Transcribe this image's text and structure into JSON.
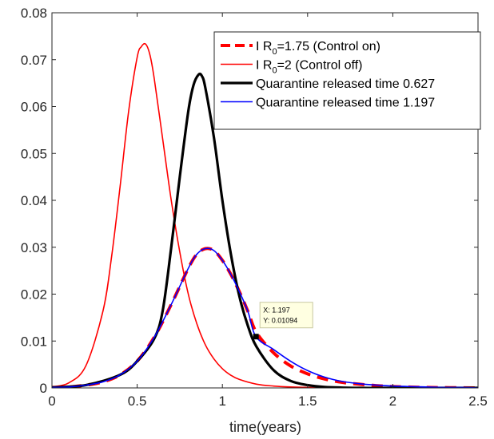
{
  "chart_data": {
    "type": "line",
    "title": "",
    "xlabel": "time(years)",
    "ylabel": "",
    "xlim": [
      0,
      2.5
    ],
    "ylim": [
      0,
      0.08
    ],
    "x_ticks": [
      "0",
      "0.5",
      "1",
      "1.5",
      "2",
      "2.5"
    ],
    "y_ticks": [
      "0",
      "0.01",
      "0.02",
      "0.03",
      "0.04",
      "0.05",
      "0.06",
      "0.07",
      "0.08"
    ],
    "grid": false,
    "legend_position": "top-right",
    "series": [
      {
        "name": "I R0=1.75 (Control on)",
        "legend_main": "I R",
        "legend_sub": "0",
        "legend_rest": "=1.75 (Control on)",
        "color": "#ff0000",
        "style": "dashed-thick",
        "x": [
          0,
          0.1,
          0.2,
          0.3,
          0.4,
          0.5,
          0.6,
          0.7,
          0.8,
          0.85,
          0.9,
          0.95,
          1.0,
          1.05,
          1.1,
          1.15,
          1.2,
          1.3,
          1.4,
          1.5,
          1.6,
          1.7,
          1.8,
          1.9,
          2.0,
          2.2,
          2.5
        ],
        "y": [
          0.0001,
          0.0002,
          0.0006,
          0.0013,
          0.0028,
          0.0057,
          0.0108,
          0.0178,
          0.0255,
          0.0285,
          0.0297,
          0.0293,
          0.0272,
          0.0242,
          0.0205,
          0.0163,
          0.0118,
          0.0075,
          0.0047,
          0.003,
          0.0019,
          0.0012,
          0.0008,
          0.0005,
          0.0003,
          0.0001,
          0.0
        ]
      },
      {
        "name": "I R0=2 (Control off)",
        "legend_main": "I R",
        "legend_sub": "0",
        "legend_rest": "=2 (Control off)",
        "color": "#ff0000",
        "style": "solid-thin",
        "x": [
          0,
          0.1,
          0.2,
          0.3,
          0.35,
          0.4,
          0.45,
          0.5,
          0.525,
          0.55,
          0.575,
          0.6,
          0.65,
          0.7,
          0.75,
          0.8,
          0.85,
          0.9,
          0.95,
          1.0,
          1.05,
          1.1,
          1.2,
          1.3,
          1.4,
          1.5,
          1.7,
          2.0,
          2.5
        ],
        "y": [
          0.0002,
          0.0011,
          0.0048,
          0.0165,
          0.028,
          0.043,
          0.059,
          0.0705,
          0.0728,
          0.0733,
          0.071,
          0.066,
          0.053,
          0.04,
          0.029,
          0.02,
          0.0137,
          0.0092,
          0.0062,
          0.0041,
          0.0027,
          0.0018,
          0.0008,
          0.0004,
          0.0002,
          0.0001,
          0.0,
          0.0,
          0.0
        ]
      },
      {
        "name": "Quarantine released  time 0.627",
        "legend_main": "Quarantine released  time 0.627",
        "legend_sub": "",
        "legend_rest": "",
        "color": "#000000",
        "style": "solid-thick",
        "x": [
          0,
          0.2,
          0.4,
          0.5,
          0.6,
          0.65,
          0.7,
          0.75,
          0.8,
          0.83,
          0.86,
          0.88,
          0.9,
          0.95,
          1.0,
          1.05,
          1.1,
          1.15,
          1.2,
          1.3,
          1.4,
          1.5,
          1.6,
          1.8,
          2.0,
          2.5
        ],
        "y": [
          0.0001,
          0.0006,
          0.0028,
          0.0057,
          0.0105,
          0.0165,
          0.03,
          0.045,
          0.059,
          0.0645,
          0.0668,
          0.0665,
          0.064,
          0.0535,
          0.04,
          0.0285,
          0.0195,
          0.0132,
          0.0088,
          0.0038,
          0.0015,
          0.0006,
          0.0002,
          0.0,
          0.0,
          0.0
        ]
      },
      {
        "name": "Quarantine released time 1.197",
        "legend_main": "Quarantine released time 1.197",
        "legend_sub": "",
        "legend_rest": "",
        "color": "#0000ff",
        "style": "solid-thin",
        "x": [
          0,
          0.1,
          0.2,
          0.3,
          0.4,
          0.5,
          0.6,
          0.7,
          0.8,
          0.85,
          0.9,
          0.95,
          1.0,
          1.05,
          1.1,
          1.15,
          1.197,
          1.3,
          1.4,
          1.5,
          1.6,
          1.7,
          1.8,
          1.9,
          2.0,
          2.1,
          2.2,
          2.3,
          2.4,
          2.5
        ],
        "y": [
          0.0001,
          0.0002,
          0.0006,
          0.0013,
          0.0028,
          0.0057,
          0.0108,
          0.0178,
          0.0255,
          0.0285,
          0.0297,
          0.0293,
          0.0272,
          0.0242,
          0.0205,
          0.0163,
          0.01094,
          0.0082,
          0.0057,
          0.0037,
          0.0023,
          0.0014,
          0.0009,
          0.0006,
          0.0004,
          0.0003,
          0.0002,
          0.0001,
          0.0001,
          0.0
        ]
      }
    ],
    "datatip": {
      "x_value": 1.197,
      "y_value": 0.01094,
      "x_text": "X: 1.197",
      "y_text": "Y: 0.01094"
    }
  }
}
